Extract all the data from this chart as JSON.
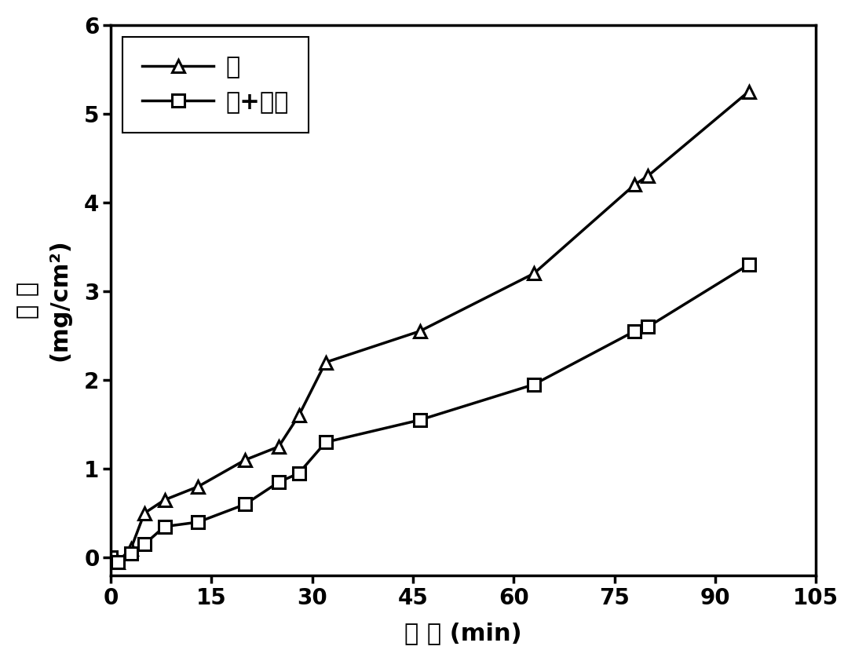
{
  "steel_x": [
    0,
    1,
    3,
    5,
    8,
    13,
    20,
    25,
    28,
    32,
    46,
    63,
    78,
    80,
    95
  ],
  "steel_y": [
    0.0,
    -0.05,
    0.1,
    0.5,
    0.65,
    0.8,
    1.1,
    1.25,
    1.6,
    2.2,
    2.55,
    3.2,
    4.2,
    4.3,
    5.25
  ],
  "coated_x": [
    0,
    1,
    3,
    5,
    8,
    13,
    20,
    25,
    28,
    32,
    46,
    63,
    78,
    80,
    95
  ],
  "coated_y": [
    0.0,
    -0.05,
    0.05,
    0.15,
    0.35,
    0.4,
    0.6,
    0.85,
    0.95,
    1.3,
    1.55,
    1.95,
    2.55,
    2.6,
    3.3
  ],
  "xlabel": "时 间 (min)",
  "ylabel_line1": "增 重",
  "ylabel_line2": "(mg/cm²)",
  "legend_steel": "钉",
  "legend_coated": "钉+涂层",
  "xlim": [
    0,
    105
  ],
  "ylim": [
    -0.2,
    6
  ],
  "xticks": [
    0,
    15,
    30,
    45,
    60,
    75,
    90,
    105
  ],
  "yticks": [
    0,
    1,
    2,
    3,
    4,
    5,
    6
  ],
  "line_color": "#000000",
  "background_color": "#ffffff",
  "linewidth": 2.5,
  "markersize": 11,
  "tick_fontsize": 20,
  "label_fontsize": 22,
  "legend_fontsize": 22
}
